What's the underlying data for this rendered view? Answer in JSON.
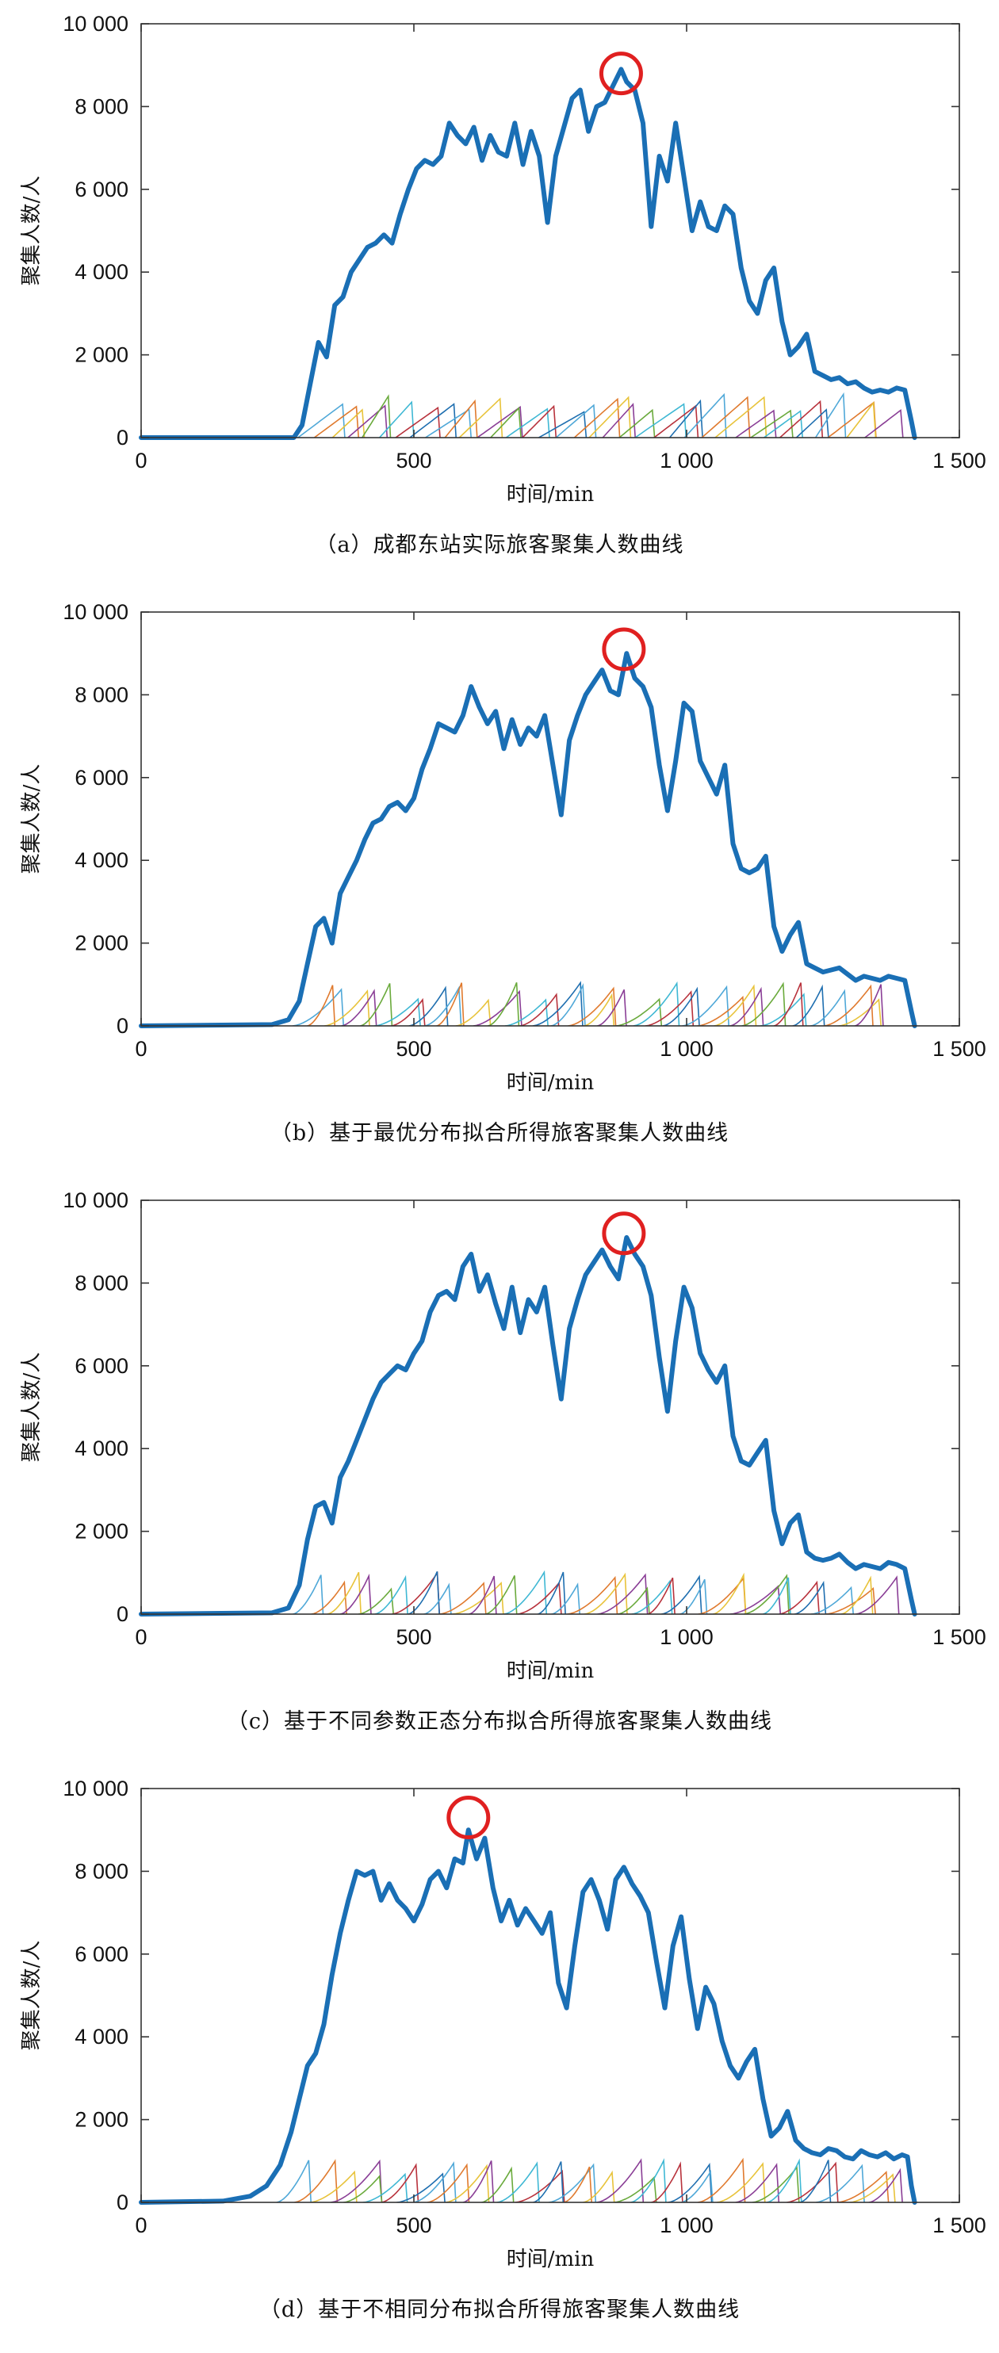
{
  "figure": {
    "colors": {
      "main_series": "#1a6fb5",
      "peak_marker": "#e02020",
      "minor_palette": [
        "#4fa8d8",
        "#e07a2e",
        "#e8c33a",
        "#8a3e96",
        "#6aaa3c",
        "#3fb8d4",
        "#b8323c",
        "#1f6fb0"
      ]
    }
  },
  "chart_data": [
    {
      "type": "line",
      "caption": "（a）成都东站实际旅客聚集人数曲线",
      "xlabel": "时间/min",
      "ylabel": "聚集人数/人",
      "xlim": [
        0,
        1500
      ],
      "ylim": [
        0,
        10000
      ],
      "xticks": [
        0,
        500,
        1000,
        1500
      ],
      "xtick_labels": [
        "0",
        "500",
        "1 000",
        "1 500"
      ],
      "yticks": [
        0,
        2000,
        4000,
        6000,
        8000,
        10000
      ],
      "ytick_labels": [
        "0",
        "2 000",
        "4 000",
        "6 000",
        "8 000",
        "10 000"
      ],
      "grid": false,
      "main_series": {
        "x": [
          0,
          280,
          295,
          310,
          325,
          340,
          355,
          370,
          385,
          400,
          415,
          430,
          445,
          460,
          475,
          490,
          505,
          520,
          535,
          550,
          565,
          580,
          595,
          610,
          625,
          640,
          655,
          670,
          685,
          700,
          715,
          730,
          745,
          760,
          775,
          790,
          805,
          820,
          835,
          850,
          865,
          880,
          890,
          905,
          920,
          935,
          950,
          965,
          980,
          995,
          1010,
          1025,
          1040,
          1055,
          1070,
          1085,
          1100,
          1115,
          1130,
          1145,
          1160,
          1175,
          1190,
          1205,
          1220,
          1235,
          1250,
          1265,
          1280,
          1295,
          1310,
          1325,
          1340,
          1355,
          1370,
          1385,
          1400,
          1412,
          1418
        ],
        "y": [
          0,
          0,
          300,
          1300,
          2300,
          1950,
          3200,
          3400,
          4000,
          4300,
          4600,
          4700,
          4900,
          4700,
          5400,
          6000,
          6500,
          6700,
          6600,
          6800,
          7600,
          7300,
          7100,
          7500,
          6700,
          7300,
          6900,
          6800,
          7600,
          6600,
          7400,
          6800,
          5200,
          6800,
          7500,
          8200,
          8400,
          7400,
          8000,
          8100,
          8500,
          8900,
          8600,
          8400,
          7600,
          5100,
          6800,
          6200,
          7600,
          6300,
          5000,
          5700,
          5100,
          5000,
          5600,
          5400,
          4100,
          3300,
          3000,
          3800,
          4100,
          2800,
          2000,
          2200,
          2500,
          1600,
          1500,
          1400,
          1450,
          1300,
          1350,
          1200,
          1100,
          1150,
          1100,
          1200,
          1150,
          400,
          0
        ]
      },
      "peak": {
        "x": 880,
        "y": 8800
      },
      "minor_series_count": 36,
      "minor_peak_range": [
        600,
        1050
      ],
      "minor_first_start": 290,
      "minor_spacing": 29.5
    },
    {
      "type": "line",
      "caption": "（b）基于最优分布拟合所得旅客聚集人数曲线",
      "xlabel": "时间/min",
      "ylabel": "聚集人数/人",
      "xlim": [
        0,
        1500
      ],
      "ylim": [
        0,
        10000
      ],
      "xticks": [
        0,
        500,
        1000,
        1500
      ],
      "xtick_labels": [
        "0",
        "500",
        "1 000",
        "1 500"
      ],
      "yticks": [
        0,
        2000,
        4000,
        6000,
        8000,
        10000
      ],
      "ytick_labels": [
        "0",
        "2 000",
        "4 000",
        "6 000",
        "8 000",
        "10 000"
      ],
      "grid": false,
      "main_series": {
        "x": [
          0,
          240,
          270,
          290,
          305,
          320,
          335,
          350,
          365,
          380,
          395,
          410,
          425,
          440,
          455,
          470,
          485,
          500,
          515,
          530,
          545,
          560,
          575,
          590,
          605,
          620,
          635,
          650,
          665,
          680,
          695,
          710,
          725,
          740,
          755,
          770,
          785,
          800,
          815,
          830,
          845,
          860,
          875,
          890,
          905,
          920,
          935,
          950,
          965,
          980,
          995,
          1010,
          1025,
          1040,
          1055,
          1070,
          1085,
          1100,
          1115,
          1130,
          1145,
          1160,
          1175,
          1190,
          1205,
          1220,
          1235,
          1250,
          1265,
          1280,
          1295,
          1310,
          1325,
          1340,
          1355,
          1370,
          1385,
          1400,
          1412,
          1418
        ],
        "y": [
          0,
          30,
          150,
          600,
          1500,
          2400,
          2600,
          2000,
          3200,
          3600,
          4000,
          4500,
          4900,
          5000,
          5300,
          5400,
          5200,
          5500,
          6200,
          6700,
          7300,
          7200,
          7100,
          7500,
          8200,
          7700,
          7300,
          7600,
          6700,
          7400,
          6800,
          7200,
          7000,
          7500,
          6300,
          5100,
          6900,
          7500,
          8000,
          8300,
          8600,
          8100,
          8000,
          9000,
          8400,
          8200,
          7700,
          6300,
          5200,
          6400,
          7800,
          7600,
          6400,
          6000,
          5600,
          6300,
          4400,
          3800,
          3700,
          3800,
          4100,
          2400,
          1800,
          2200,
          2500,
          1500,
          1400,
          1300,
          1350,
          1400,
          1250,
          1100,
          1200,
          1150,
          1100,
          1200,
          1150,
          1100,
          350,
          0
        ]
      },
      "peak": {
        "x": 885,
        "y": 9100
      },
      "minor_series_count": 36,
      "minor_peak_range": [
        600,
        1050
      ],
      "minor_first_start": 280,
      "minor_spacing": 29.5
    },
    {
      "type": "line",
      "caption": "（c）基于不同参数正态分布拟合所得旅客聚集人数曲线",
      "xlabel": "时间/min",
      "ylabel": "聚集人数/人",
      "xlim": [
        0,
        1500
      ],
      "ylim": [
        0,
        10000
      ],
      "xticks": [
        0,
        500,
        1000,
        1500
      ],
      "xtick_labels": [
        "0",
        "500",
        "1 000",
        "1 500"
      ],
      "yticks": [
        0,
        2000,
        4000,
        6000,
        8000,
        10000
      ],
      "ytick_labels": [
        "0",
        "2 000",
        "4 000",
        "6 000",
        "8 000",
        "10 000"
      ],
      "grid": false,
      "main_series": {
        "x": [
          0,
          240,
          270,
          290,
          305,
          320,
          335,
          350,
          365,
          380,
          395,
          410,
          425,
          440,
          455,
          470,
          485,
          500,
          515,
          530,
          545,
          560,
          575,
          590,
          605,
          620,
          635,
          650,
          665,
          680,
          695,
          710,
          725,
          740,
          755,
          770,
          785,
          800,
          815,
          830,
          845,
          860,
          875,
          890,
          905,
          920,
          935,
          950,
          965,
          980,
          995,
          1010,
          1025,
          1040,
          1055,
          1070,
          1085,
          1100,
          1115,
          1130,
          1145,
          1160,
          1175,
          1190,
          1205,
          1220,
          1235,
          1250,
          1265,
          1280,
          1295,
          1310,
          1325,
          1340,
          1355,
          1370,
          1385,
          1400,
          1412,
          1418
        ],
        "y": [
          0,
          30,
          150,
          700,
          1800,
          2600,
          2700,
          2200,
          3300,
          3700,
          4200,
          4700,
          5200,
          5600,
          5800,
          6000,
          5900,
          6300,
          6600,
          7300,
          7700,
          7800,
          7600,
          8400,
          8700,
          7800,
          8200,
          7500,
          6900,
          7900,
          6800,
          7600,
          7300,
          7900,
          6500,
          5200,
          6900,
          7600,
          8200,
          8500,
          8800,
          8400,
          8100,
          9100,
          8700,
          8400,
          7700,
          6200,
          4900,
          6600,
          7900,
          7400,
          6300,
          5900,
          5600,
          6000,
          4300,
          3700,
          3600,
          3900,
          4200,
          2500,
          1700,
          2200,
          2400,
          1500,
          1350,
          1300,
          1350,
          1450,
          1250,
          1100,
          1200,
          1150,
          1100,
          1250,
          1200,
          1100,
          350,
          0
        ]
      },
      "peak": {
        "x": 885,
        "y": 9200
      },
      "minor_series_count": 36,
      "minor_peak_range": [
        600,
        1050
      ],
      "minor_first_start": 280,
      "minor_spacing": 29.5
    },
    {
      "type": "line",
      "caption": "（d）基于不相同分布拟合所得旅客聚集人数曲线",
      "xlabel": "时间/min",
      "ylabel": "聚集人数/人",
      "xlim": [
        0,
        1500
      ],
      "ylim": [
        0,
        10000
      ],
      "xticks": [
        0,
        500,
        1000,
        1500
      ],
      "xtick_labels": [
        "0",
        "500",
        "1 000",
        "1 500"
      ],
      "yticks": [
        0,
        2000,
        4000,
        6000,
        8000,
        10000
      ],
      "ytick_labels": [
        "0",
        "2 000",
        "4 000",
        "6 000",
        "8 000",
        "10 000"
      ],
      "grid": false,
      "main_series": {
        "x": [
          0,
          150,
          200,
          230,
          255,
          275,
          290,
          305,
          320,
          335,
          350,
          365,
          380,
          395,
          410,
          425,
          440,
          455,
          470,
          485,
          500,
          515,
          530,
          545,
          560,
          575,
          590,
          600,
          615,
          630,
          645,
          660,
          675,
          690,
          705,
          720,
          735,
          750,
          765,
          780,
          795,
          810,
          825,
          840,
          855,
          870,
          885,
          900,
          915,
          930,
          945,
          960,
          975,
          990,
          1005,
          1020,
          1035,
          1050,
          1065,
          1080,
          1095,
          1110,
          1125,
          1140,
          1155,
          1170,
          1185,
          1200,
          1215,
          1230,
          1245,
          1260,
          1275,
          1290,
          1305,
          1320,
          1335,
          1350,
          1365,
          1380,
          1395,
          1405,
          1412,
          1418
        ],
        "y": [
          0,
          30,
          150,
          400,
          900,
          1700,
          2500,
          3300,
          3600,
          4300,
          5500,
          6500,
          7300,
          8000,
          7900,
          8000,
          7300,
          7700,
          7300,
          7100,
          6800,
          7200,
          7800,
          8000,
          7600,
          8300,
          8200,
          9000,
          8300,
          8800,
          7600,
          6800,
          7300,
          6700,
          7100,
          6800,
          6500,
          7000,
          5300,
          4700,
          6200,
          7500,
          7800,
          7300,
          6600,
          7800,
          8100,
          7700,
          7400,
          7000,
          5800,
          4700,
          6200,
          6900,
          5400,
          4200,
          5200,
          4800,
          3900,
          3300,
          3000,
          3400,
          3700,
          2500,
          1600,
          1800,
          2200,
          1500,
          1300,
          1200,
          1150,
          1300,
          1250,
          1100,
          1050,
          1250,
          1150,
          1100,
          1200,
          1050,
          1150,
          1100,
          400,
          0
        ]
      },
      "peak": {
        "x": 600,
        "y": 9300
      },
      "minor_series_count": 36,
      "minor_peak_range": [
        600,
        1050
      ],
      "minor_first_start": 250,
      "minor_spacing": 31
    }
  ]
}
